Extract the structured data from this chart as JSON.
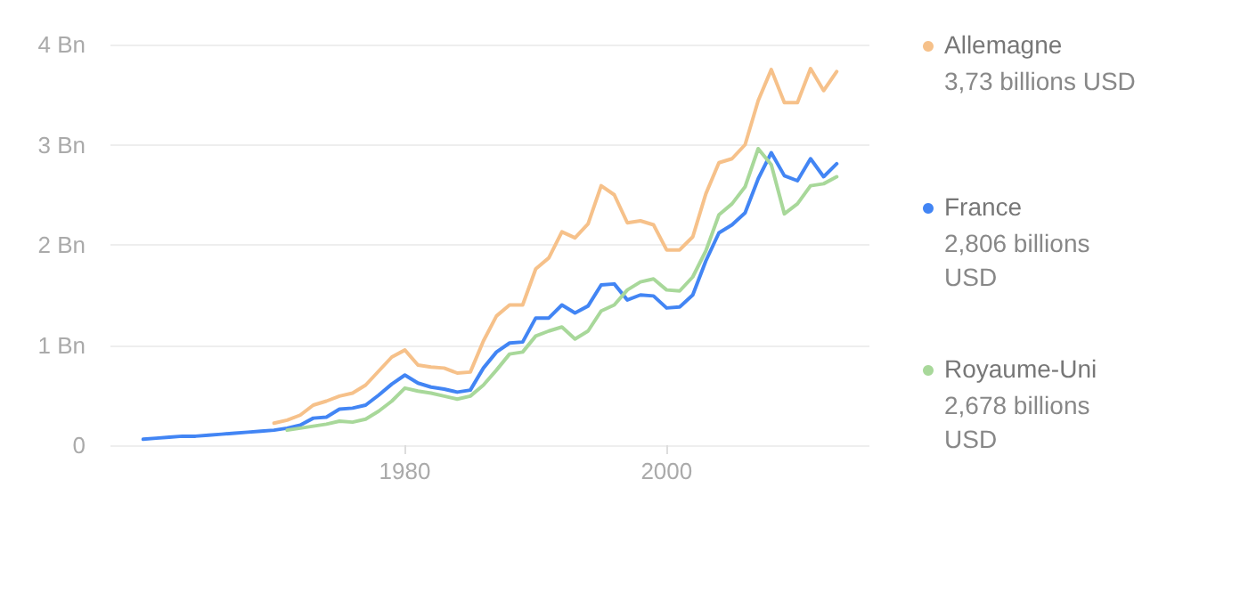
{
  "chart_data": {
    "type": "line",
    "legend": "right",
    "grid": "y",
    "marker": "none",
    "xlim": [
      1957.5,
      2015.5
    ],
    "xticks": [
      1980,
      2000
    ],
    "ylim": [
      0,
      4
    ],
    "yticks": [
      {
        "value": 0,
        "label": "0"
      },
      {
        "value": 1,
        "label": "1 Bn"
      },
      {
        "value": 2,
        "label": "2 Bn"
      },
      {
        "value": 3,
        "label": "3 Bn"
      },
      {
        "value": 4,
        "label": "4 Bn"
      }
    ],
    "annotations": [
      "3,73 billions USD",
      "2,806 billions USD",
      "2,678 billions USD"
    ],
    "series": [
      {
        "name": "Allemagne",
        "color": "#f6c18a",
        "x": [
          1970,
          1971,
          1972,
          1973,
          1974,
          1975,
          1976,
          1977,
          1978,
          1979,
          1980,
          1981,
          1982,
          1983,
          1984,
          1985,
          1986,
          1987,
          1988,
          1989,
          1990,
          1991,
          1992,
          1993,
          1994,
          1995,
          1996,
          1997,
          1998,
          1999,
          2000,
          2001,
          2002,
          2003,
          2004,
          2005,
          2006,
          2007,
          2008,
          2009,
          2010,
          2011,
          2012,
          2013
        ],
        "values": [
          0.22,
          0.25,
          0.3,
          0.4,
          0.44,
          0.49,
          0.52,
          0.6,
          0.74,
          0.88,
          0.95,
          0.8,
          0.78,
          0.77,
          0.72,
          0.73,
          1.04,
          1.29,
          1.4,
          1.4,
          1.76,
          1.87,
          2.13,
          2.07,
          2.21,
          2.59,
          2.5,
          2.22,
          2.24,
          2.2,
          1.95,
          1.95,
          2.08,
          2.51,
          2.82,
          2.86,
          3.0,
          3.44,
          3.75,
          3.42,
          3.42,
          3.76,
          3.54,
          3.73
        ]
      },
      {
        "name": "France",
        "color": "#4285f4",
        "x": [
          1960,
          1961,
          1962,
          1963,
          1964,
          1965,
          1966,
          1967,
          1968,
          1969,
          1970,
          1971,
          1972,
          1973,
          1974,
          1975,
          1976,
          1977,
          1978,
          1979,
          1980,
          1981,
          1982,
          1983,
          1984,
          1985,
          1986,
          1987,
          1988,
          1989,
          1990,
          1991,
          1992,
          1993,
          1994,
          1995,
          1996,
          1997,
          1998,
          1999,
          2000,
          2001,
          2002,
          2003,
          2004,
          2005,
          2006,
          2007,
          2008,
          2009,
          2010,
          2011,
          2012,
          2013
        ],
        "values": [
          0.06,
          0.07,
          0.08,
          0.09,
          0.09,
          0.1,
          0.11,
          0.12,
          0.13,
          0.14,
          0.15,
          0.17,
          0.2,
          0.27,
          0.28,
          0.36,
          0.37,
          0.4,
          0.5,
          0.61,
          0.7,
          0.62,
          0.58,
          0.56,
          0.53,
          0.55,
          0.77,
          0.93,
          1.02,
          1.03,
          1.27,
          1.27,
          1.4,
          1.32,
          1.39,
          1.6,
          1.61,
          1.45,
          1.5,
          1.49,
          1.37,
          1.38,
          1.5,
          1.84,
          2.12,
          2.2,
          2.32,
          2.66,
          2.92,
          2.69,
          2.64,
          2.86,
          2.68,
          2.81
        ]
      },
      {
        "name": "Royaume-Uni",
        "color": "#a8d89a",
        "x": [
          1971,
          1972,
          1973,
          1974,
          1975,
          1976,
          1977,
          1978,
          1979,
          1980,
          1981,
          1982,
          1983,
          1984,
          1985,
          1986,
          1987,
          1988,
          1989,
          1990,
          1991,
          1992,
          1993,
          1994,
          1995,
          1996,
          1997,
          1998,
          1999,
          2000,
          2001,
          2002,
          2003,
          2004,
          2005,
          2006,
          2007,
          2008,
          2009,
          2010,
          2011,
          2012,
          2013
        ],
        "values": [
          0.15,
          0.17,
          0.19,
          0.21,
          0.24,
          0.23,
          0.26,
          0.34,
          0.44,
          0.57,
          0.54,
          0.52,
          0.49,
          0.46,
          0.49,
          0.6,
          0.75,
          0.91,
          0.93,
          1.09,
          1.14,
          1.18,
          1.06,
          1.14,
          1.34,
          1.4,
          1.55,
          1.63,
          1.66,
          1.55,
          1.54,
          1.68,
          1.94,
          2.3,
          2.41,
          2.58,
          2.96,
          2.8,
          2.31,
          2.41,
          2.59,
          2.61,
          2.68
        ]
      }
    ]
  }
}
